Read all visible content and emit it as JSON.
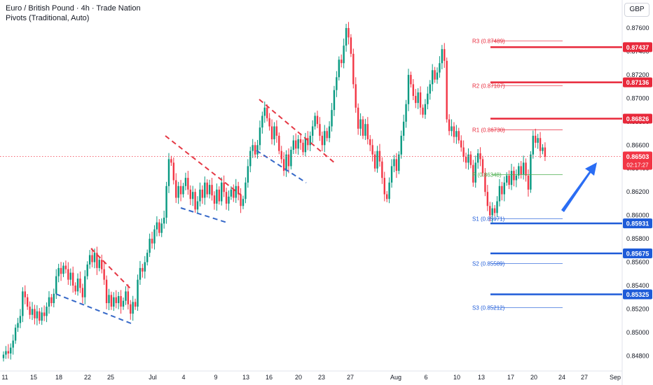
{
  "header": {
    "title": "Euro / British Pound · 4h · Trade Nation",
    "indicator": "Pivots (Traditional, Auto)",
    "currency": "GBP"
  },
  "colors": {
    "up": "#089981",
    "down": "#f23645",
    "resistance": "#e8283a",
    "support": "#1e5bd8",
    "pivot": "#4caf50",
    "arrow": "#2a6df4",
    "trendRed": "#e53945",
    "trendBlue": "#3568c8"
  },
  "chart_data": {
    "type": "candlestick",
    "ylim": [
      0.8473,
      0.8772
    ],
    "y_ticks": [
      "0.87600",
      "0.87400",
      "0.87200",
      "0.87000",
      "0.86800",
      "0.86600",
      "0.86400",
      "0.86200",
      "0.86000",
      "0.85800",
      "0.85600",
      "0.85400",
      "0.85200",
      "0.85000",
      "0.84800"
    ],
    "x_ticks": [
      "11",
      "15",
      "18",
      "22",
      "25",
      "Jul",
      "4",
      "9",
      "13",
      "16",
      "20",
      "23",
      "27",
      "Aug",
      "6",
      "10",
      "13",
      "17",
      "20",
      "24",
      "27",
      "Sep"
    ],
    "last_price": {
      "label": "0.86503",
      "countdown": "02:17:27",
      "value": 0.86503
    },
    "price_tags": [
      {
        "label": "0.87437",
        "value": 0.87437,
        "kind": "resistance"
      },
      {
        "label": "0.87136",
        "value": 0.87136,
        "kind": "resistance"
      },
      {
        "label": "0.86826",
        "value": 0.86826,
        "kind": "resistance"
      },
      {
        "label": "0.85931",
        "value": 0.85931,
        "kind": "support"
      },
      {
        "label": "0.85675",
        "value": 0.85675,
        "kind": "support"
      },
      {
        "label": "0.85325",
        "value": 0.85325,
        "kind": "support"
      }
    ],
    "pivots": [
      {
        "label": "R3 (0.87489)",
        "value": 0.87489,
        "kind": "resistance"
      },
      {
        "label": "R2 (0.87107)",
        "value": 0.87107,
        "kind": "resistance"
      },
      {
        "label": "R1 (0.86730)",
        "value": 0.8673,
        "kind": "resistance"
      },
      {
        "label": "P (0.86348)",
        "value": 0.86348,
        "kind": "pivot"
      },
      {
        "label": "S1 (0.85971)",
        "value": 0.85971,
        "kind": "support"
      },
      {
        "label": "S2 (0.85589)",
        "value": 0.85589,
        "kind": "support"
      },
      {
        "label": "S3 (0.85212)",
        "value": 0.85212,
        "kind": "support"
      }
    ],
    "candles": [
      [
        0.8478,
        0.8481
      ],
      [
        0.8481,
        0.8484
      ],
      [
        0.8484,
        0.8482
      ],
      [
        0.8482,
        0.8487
      ],
      [
        0.8487,
        0.8493
      ],
      [
        0.8493,
        0.8504
      ],
      [
        0.8504,
        0.8508
      ],
      [
        0.8508,
        0.8514
      ],
      [
        0.8514,
        0.8535
      ],
      [
        0.8535,
        0.853
      ],
      [
        0.853,
        0.8522
      ],
      [
        0.8522,
        0.8515
      ],
      [
        0.8515,
        0.852
      ],
      [
        0.852,
        0.8512
      ],
      [
        0.8512,
        0.8518
      ],
      [
        0.8518,
        0.851
      ],
      [
        0.851,
        0.8517
      ],
      [
        0.8517,
        0.8514
      ],
      [
        0.8514,
        0.8522
      ],
      [
        0.8522,
        0.853
      ],
      [
        0.853,
        0.8525
      ],
      [
        0.8525,
        0.8533
      ],
      [
        0.8533,
        0.8548
      ],
      [
        0.8548,
        0.8555
      ],
      [
        0.8555,
        0.855
      ],
      [
        0.855,
        0.8557
      ],
      [
        0.8557,
        0.8554
      ],
      [
        0.8554,
        0.8545
      ],
      [
        0.8545,
        0.8551
      ],
      [
        0.8551,
        0.854
      ],
      [
        0.854,
        0.8535
      ],
      [
        0.8535,
        0.8546
      ],
      [
        0.8546,
        0.8538
      ],
      [
        0.8538,
        0.853
      ],
      [
        0.853,
        0.8548
      ],
      [
        0.8548,
        0.8558
      ],
      [
        0.8558,
        0.8566
      ],
      [
        0.8566,
        0.856
      ],
      [
        0.856,
        0.8568
      ],
      [
        0.8568,
        0.8555
      ],
      [
        0.8555,
        0.8562
      ],
      [
        0.8562,
        0.8554
      ],
      [
        0.8554,
        0.8545
      ],
      [
        0.8545,
        0.8525
      ],
      [
        0.8525,
        0.8532
      ],
      [
        0.8532,
        0.8522
      ],
      [
        0.8522,
        0.853
      ],
      [
        0.853,
        0.8525
      ],
      [
        0.8525,
        0.8531
      ],
      [
        0.8531,
        0.8522
      ],
      [
        0.8522,
        0.8527
      ],
      [
        0.8527,
        0.8535
      ],
      [
        0.8535,
        0.8524
      ],
      [
        0.8524,
        0.8516
      ],
      [
        0.8516,
        0.8526
      ],
      [
        0.8526,
        0.8522
      ],
      [
        0.8522,
        0.8545
      ],
      [
        0.8545,
        0.8555
      ],
      [
        0.8555,
        0.8552
      ],
      [
        0.8552,
        0.856
      ],
      [
        0.856,
        0.8568
      ],
      [
        0.8568,
        0.858
      ],
      [
        0.858,
        0.8576
      ],
      [
        0.8576,
        0.8588
      ],
      [
        0.8588,
        0.8594
      ],
      [
        0.8594,
        0.8585
      ],
      [
        0.8585,
        0.8593
      ],
      [
        0.8593,
        0.8598
      ],
      [
        0.8598,
        0.8625
      ],
      [
        0.8625,
        0.8648
      ],
      [
        0.8648,
        0.8645
      ],
      [
        0.8645,
        0.863
      ],
      [
        0.863,
        0.8615
      ],
      [
        0.8615,
        0.8625
      ],
      [
        0.8625,
        0.8618
      ],
      [
        0.8618,
        0.8625
      ],
      [
        0.8625,
        0.8632
      ],
      [
        0.8632,
        0.8622
      ],
      [
        0.8622,
        0.8614
      ],
      [
        0.8614,
        0.862
      ],
      [
        0.862,
        0.8605
      ],
      [
        0.8605,
        0.8612
      ],
      [
        0.8612,
        0.8622
      ],
      [
        0.8622,
        0.8615
      ],
      [
        0.8615,
        0.8628
      ],
      [
        0.8628,
        0.8618
      ],
      [
        0.8618,
        0.8626
      ],
      [
        0.8626,
        0.8617
      ],
      [
        0.8617,
        0.861
      ],
      [
        0.861,
        0.8622
      ],
      [
        0.8622,
        0.8612
      ],
      [
        0.8612,
        0.8628
      ],
      [
        0.8628,
        0.862
      ],
      [
        0.862,
        0.861
      ],
      [
        0.861,
        0.8616
      ],
      [
        0.8616,
        0.8622
      ],
      [
        0.8622,
        0.8615
      ],
      [
        0.8615,
        0.8625
      ],
      [
        0.8625,
        0.8618
      ],
      [
        0.8618,
        0.8608
      ],
      [
        0.8608,
        0.8614
      ],
      [
        0.8614,
        0.8628
      ],
      [
        0.8628,
        0.8642
      ],
      [
        0.8642,
        0.8655
      ],
      [
        0.8655,
        0.866
      ],
      [
        0.866,
        0.8652
      ],
      [
        0.8652,
        0.866
      ],
      [
        0.866,
        0.8675
      ],
      [
        0.8675,
        0.8685
      ],
      [
        0.8685,
        0.8692
      ],
      [
        0.8692,
        0.8683
      ],
      [
        0.8683,
        0.8676
      ],
      [
        0.8676,
        0.8665
      ],
      [
        0.8665,
        0.8676
      ],
      [
        0.8676,
        0.8668
      ],
      [
        0.8668,
        0.8655
      ],
      [
        0.8655,
        0.8648
      ],
      [
        0.8648,
        0.8638
      ],
      [
        0.8638,
        0.8652
      ],
      [
        0.8652,
        0.8642
      ],
      [
        0.8642,
        0.8656
      ],
      [
        0.8656,
        0.8664
      ],
      [
        0.8664,
        0.8657
      ],
      [
        0.8657,
        0.8665
      ],
      [
        0.8665,
        0.8662
      ],
      [
        0.8662,
        0.8654
      ],
      [
        0.8654,
        0.8666
      ],
      [
        0.8666,
        0.866
      ],
      [
        0.866,
        0.8668
      ],
      [
        0.8668,
        0.8676
      ],
      [
        0.8676,
        0.8685
      ],
      [
        0.8685,
        0.8678
      ],
      [
        0.8678,
        0.8668
      ],
      [
        0.8668,
        0.866
      ],
      [
        0.866,
        0.8672
      ],
      [
        0.8672,
        0.8666
      ],
      [
        0.8666,
        0.8676
      ],
      [
        0.8676,
        0.869
      ],
      [
        0.869,
        0.8707
      ],
      [
        0.8707,
        0.8718
      ],
      [
        0.8718,
        0.8733
      ],
      [
        0.8733,
        0.873
      ],
      [
        0.873,
        0.8745
      ],
      [
        0.8745,
        0.876
      ],
      [
        0.876,
        0.8752
      ],
      [
        0.8752,
        0.8738
      ],
      [
        0.8738,
        0.8712
      ],
      [
        0.8712,
        0.8692
      ],
      [
        0.8692,
        0.8674
      ],
      [
        0.8674,
        0.8682
      ],
      [
        0.8682,
        0.8668
      ],
      [
        0.8668,
        0.8678
      ],
      [
        0.8678,
        0.8665
      ],
      [
        0.8665,
        0.866
      ],
      [
        0.866,
        0.8652
      ],
      [
        0.8652,
        0.864
      ],
      [
        0.864,
        0.8655
      ],
      [
        0.8655,
        0.8646
      ],
      [
        0.8646,
        0.8632
      ],
      [
        0.8632,
        0.8618
      ],
      [
        0.8618,
        0.8614
      ],
      [
        0.8614,
        0.8628
      ],
      [
        0.8628,
        0.8642
      ],
      [
        0.8642,
        0.8648
      ],
      [
        0.8648,
        0.8638
      ],
      [
        0.8638,
        0.8652
      ],
      [
        0.8652,
        0.8668
      ],
      [
        0.8668,
        0.868
      ],
      [
        0.868,
        0.8695
      ],
      [
        0.8695,
        0.872
      ],
      [
        0.872,
        0.8712
      ],
      [
        0.8712,
        0.8702
      ],
      [
        0.8702,
        0.8696
      ],
      [
        0.8696,
        0.8705
      ],
      [
        0.8705,
        0.8692
      ],
      [
        0.8692,
        0.8686
      ],
      [
        0.8686,
        0.8695
      ],
      [
        0.8695,
        0.8704
      ],
      [
        0.8704,
        0.8712
      ],
      [
        0.8712,
        0.8724
      ],
      [
        0.8724,
        0.8716
      ],
      [
        0.8716,
        0.8722
      ],
      [
        0.8722,
        0.873
      ],
      [
        0.873,
        0.8742
      ],
      [
        0.8742,
        0.8732
      ],
      [
        0.8732,
        0.8682
      ],
      [
        0.8682,
        0.8672
      ],
      [
        0.8672,
        0.8676
      ],
      [
        0.8676,
        0.8667
      ],
      [
        0.8667,
        0.8672
      ],
      [
        0.8672,
        0.8664
      ],
      [
        0.8664,
        0.8658
      ],
      [
        0.8658,
        0.865
      ],
      [
        0.865,
        0.8645
      ],
      [
        0.8645,
        0.8652
      ],
      [
        0.8652,
        0.8643
      ],
      [
        0.8643,
        0.8628
      ],
      [
        0.8628,
        0.8645
      ],
      [
        0.8645,
        0.8653
      ],
      [
        0.8653,
        0.8648
      ],
      [
        0.8648,
        0.8636
      ],
      [
        0.8636,
        0.862
      ],
      [
        0.862,
        0.8608
      ],
      [
        0.8608,
        0.86
      ],
      [
        0.86,
        0.8606
      ],
      [
        0.8606,
        0.8602
      ],
      [
        0.8602,
        0.8612
      ],
      [
        0.8612,
        0.8625
      ],
      [
        0.8625,
        0.8618
      ],
      [
        0.8618,
        0.8628
      ],
      [
        0.8628,
        0.8634
      ],
      [
        0.8634,
        0.8626
      ],
      [
        0.8626,
        0.8638
      ],
      [
        0.8638,
        0.863
      ],
      [
        0.863,
        0.8634
      ],
      [
        0.8634,
        0.8642
      ],
      [
        0.8642,
        0.8635
      ],
      [
        0.8635,
        0.8645
      ],
      [
        0.8645,
        0.8634
      ],
      [
        0.8634,
        0.8622
      ],
      [
        0.8622,
        0.8652
      ],
      [
        0.8652,
        0.8668
      ],
      [
        0.8668,
        0.8662
      ],
      [
        0.8662,
        0.8666
      ],
      [
        0.8666,
        0.8655
      ],
      [
        0.8655,
        0.8658
      ],
      [
        0.8658,
        0.865
      ]
    ]
  }
}
